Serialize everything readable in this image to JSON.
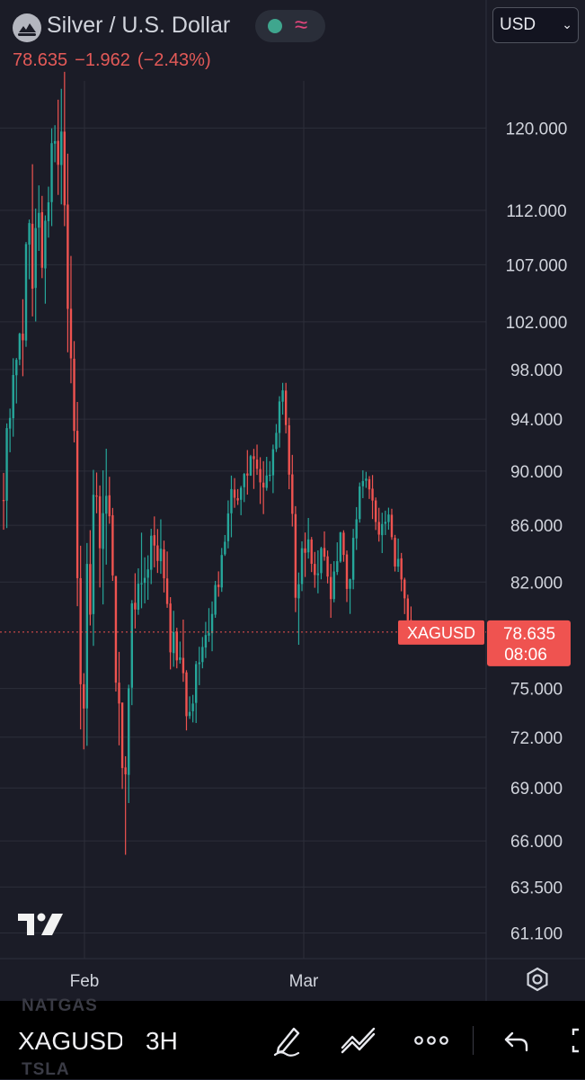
{
  "header": {
    "symbol_title": "Silver / U.S. Dollar",
    "logo_icon": "silver-cloud-logo-icon",
    "status_icons": [
      "market-open-dot-icon",
      "delayed-wave-icon"
    ],
    "last_price": "78.635",
    "change": "−1.962",
    "change_percent": "(−2.43%)",
    "currency": "USD"
  },
  "chart_data": {
    "type": "candlestick",
    "symbol": "XAGUSD",
    "interval": "3H",
    "scale": "log",
    "grid": true,
    "y_ticks": [
      "120.000",
      "112.000",
      "107.000",
      "102.000",
      "98.000",
      "94.000",
      "90.000",
      "86.000",
      "82.000",
      "75.000",
      "72.000",
      "69.000",
      "66.000",
      "63.500",
      "61.100"
    ],
    "x_ticks": [
      "Feb",
      "Mar"
    ],
    "ylim": [
      59.8,
      131
    ],
    "last_price": 78.635,
    "last_price_label": "78.635",
    "countdown": "08:06",
    "symbol_label": "XAGUSD",
    "colors": {
      "up": "#26a69a",
      "down": "#ef5350",
      "background": "#1b1c27",
      "grid": "#2c2e3a"
    },
    "ohlc": [
      [
        87.84,
        89.86,
        85.68,
        87.78
      ],
      [
        87.79,
        93.67,
        85.8,
        93.3
      ],
      [
        93.26,
        94.84,
        91.43,
        94.1
      ],
      [
        94.08,
        98.93,
        92.63,
        97.55
      ],
      [
        97.53,
        98.95,
        95.25,
        98.8
      ],
      [
        98.83,
        101.07,
        98.35,
        100.98
      ],
      [
        100.99,
        103.95,
        97.45,
        100.43
      ],
      [
        100.41,
        109.06,
        99.88,
        108.87
      ],
      [
        108.82,
        111.13,
        105.7,
        110.8
      ],
      [
        110.74,
        116.41,
        102.46,
        104.87
      ],
      [
        104.94,
        112.16,
        102.03,
        110.34
      ],
      [
        110.38,
        114.36,
        108.25,
        111.75
      ],
      [
        111.82,
        113.36,
        105.8,
        106.73
      ],
      [
        106.67,
        111.52,
        103.56,
        111.02
      ],
      [
        110.98,
        114.24,
        109.46,
        112.75
      ],
      [
        112.77,
        119.96,
        110.52,
        118.48
      ],
      [
        118.43,
        120.28,
        116.6,
        118.69
      ],
      [
        118.71,
        122.88,
        113.45,
        116.35
      ],
      [
        116.33,
        124.01,
        112.56,
        119.64
      ],
      [
        119.63,
        125.79,
        110.52,
        112.46
      ],
      [
        112.54,
        117.44,
        99.43,
        103.11
      ],
      [
        103.12,
        107.79,
        96.87,
        98.92
      ],
      [
        98.89,
        100.36,
        92.19,
        93.08
      ],
      [
        93.09,
        95.37,
        80.36,
        82.27
      ],
      [
        82.27,
        84.54,
        72.47,
        75.27
      ],
      [
        75.27,
        75.97,
        71.27,
        73.75
      ],
      [
        73.76,
        84.73,
        71.48,
        83.26
      ],
      [
        83.25,
        85.65,
        79.07,
        79.79
      ],
      [
        79.83,
        90.09,
        77.73,
        88.23
      ],
      [
        88.17,
        89.89,
        86.87,
        88.11
      ],
      [
        88.12,
        88.92,
        81.63,
        84.36
      ],
      [
        84.31,
        90.06,
        80.48,
        86.88
      ],
      [
        86.84,
        91.7,
        83.21,
        88.15
      ],
      [
        88.19,
        89.57,
        86.11,
        86.65
      ],
      [
        86.73,
        87.26,
        82.08,
        82.46
      ],
      [
        82.42,
        82.42,
        74.81,
        75.37
      ],
      [
        75.37,
        77.34,
        71.51,
        74.06
      ],
      [
        74.12,
        74.12,
        68.94,
        70.16
      ],
      [
        70.2,
        70.86,
        65.24,
        69.79
      ],
      [
        69.76,
        75.24,
        68.13,
        75.01
      ],
      [
        75.05,
        80.77,
        73.96,
        80.55
      ],
      [
        80.59,
        82.61,
        78.87,
        80.14
      ],
      [
        80.12,
        82.95,
        79.78,
        81.89
      ],
      [
        81.88,
        85.47,
        80.22,
        81.92
      ],
      [
        81.95,
        83.72,
        80.55,
        82.29
      ],
      [
        82.3,
        83.86,
        80.79,
        82.88
      ],
      [
        82.85,
        85.75,
        81.86,
        85.25
      ],
      [
        85.29,
        86.64,
        83.02,
        84.55
      ],
      [
        84.56,
        85.73,
        82.63,
        83.47
      ],
      [
        83.45,
        86.43,
        82.57,
        84.33
      ],
      [
        84.28,
        84.9,
        81.29,
        82.26
      ],
      [
        82.25,
        84.13,
        80.25,
        80.51
      ],
      [
        80.54,
        80.97,
        76.21,
        77.31
      ],
      [
        77.26,
        80.05,
        76.38,
        78.63
      ],
      [
        78.67,
        78.92,
        76.28,
        76.79
      ],
      [
        76.82,
        78.01,
        76.58,
        76.98
      ],
      [
        76.95,
        79.46,
        75.42,
        75.97
      ],
      [
        76.02,
        76.16,
        72.41,
        73.28
      ],
      [
        73.29,
        74.51,
        73.11,
        73.54
      ],
      [
        73.58,
        74.6,
        72.9,
        74.06
      ],
      [
        74.1,
        76.75,
        72.86,
        76.55
      ],
      [
        76.55,
        77.67,
        75.21,
        76.66
      ],
      [
        76.68,
        78.31,
        76.28,
        77.66
      ],
      [
        77.62,
        79.31,
        76.94,
        78.44
      ],
      [
        78.4,
        80.23,
        77.99,
        78.58
      ],
      [
        78.56,
        80.68,
        77.38,
        79.84
      ],
      [
        79.79,
        82.08,
        79.58,
        81.8
      ],
      [
        81.82,
        82.74,
        81.0,
        81.66
      ],
      [
        81.63,
        84.38,
        81.33,
        83.88
      ],
      [
        83.93,
        85.3,
        83.82,
        84.82
      ],
      [
        84.86,
        87.81,
        84.35,
        86.86
      ],
      [
        86.87,
        89.66,
        85.14,
        88.65
      ],
      [
        88.61,
        89.47,
        87.27,
        88.01
      ],
      [
        87.98,
        88.65,
        87.48,
        87.81
      ],
      [
        87.86,
        88.89,
        86.73,
        88.75
      ],
      [
        88.79,
        89.86,
        87.69,
        89.78
      ],
      [
        89.82,
        91.6,
        88.24,
        89.66
      ],
      [
        89.66,
        91.23,
        89.64,
        91.13
      ],
      [
        91.13,
        91.69,
        88.66,
        90.91
      ],
      [
        90.87,
        92.02,
        89.71,
        90.17
      ],
      [
        90.15,
        91.05,
        87.55,
        89.15
      ],
      [
        89.13,
        90.75,
        86.81,
        88.77
      ],
      [
        88.74,
        91.08,
        88.53,
        89.67
      ],
      [
        89.67,
        90.75,
        89.23,
        89.72
      ],
      [
        89.68,
        92.02,
        88.35,
        91.66
      ],
      [
        91.68,
        93.62,
        91.45,
        92.93
      ],
      [
        92.92,
        95.83,
        91.79,
        95.41
      ],
      [
        95.39,
        96.91,
        94.36,
        96.3
      ],
      [
        96.28,
        96.91,
        92.89,
        93.54
      ],
      [
        93.52,
        94.11,
        88.64,
        89.73
      ],
      [
        89.75,
        91.23,
        85.91,
        86.83
      ],
      [
        86.81,
        87.39,
        79.96,
        80.93
      ],
      [
        80.89,
        82.66,
        77.8,
        81.85
      ],
      [
        81.87,
        84.85,
        81.38,
        84.36
      ],
      [
        84.35,
        85.48,
        82.35,
        84.04
      ],
      [
        84.07,
        86.53,
        83.63,
        84.99
      ],
      [
        84.98,
        85.16,
        82.69,
        83.27
      ],
      [
        83.26,
        84.1,
        81.61,
        82.49
      ],
      [
        82.48,
        84.21,
        81.23,
        82.6
      ],
      [
        82.62,
        84.46,
        82.19,
        84.37
      ],
      [
        84.38,
        85.56,
        83.48,
        83.76
      ],
      [
        83.79,
        84.2,
        81.91,
        82.38
      ],
      [
        82.35,
        83.26,
        79.58,
        80.84
      ],
      [
        80.84,
        83.45,
        80.62,
        82.73
      ],
      [
        82.7,
        84.78,
        82.49,
        83.45
      ],
      [
        83.43,
        85.53,
        83.34,
        85.49
      ],
      [
        85.47,
        85.64,
        83.41,
        83.89
      ],
      [
        83.92,
        84.2,
        80.64,
        81.53
      ],
      [
        81.54,
        82.24,
        79.84,
        82.2
      ],
      [
        82.16,
        85.74,
        81.51,
        85.1
      ],
      [
        85.06,
        87.32,
        84.24,
        86.43
      ],
      [
        86.45,
        89.14,
        86.19,
        88.84
      ],
      [
        88.86,
        90.06,
        87.98,
        89.25
      ],
      [
        89.27,
        89.94,
        88.74,
        89.43
      ],
      [
        89.39,
        89.62,
        87.92,
        88.63
      ],
      [
        88.68,
        89.7,
        86.45,
        87.8
      ],
      [
        87.81,
        88.03,
        85.66,
        86.24
      ],
      [
        86.24,
        87.27,
        84.83,
        85.33
      ],
      [
        85.29,
        86.91,
        84.02,
        86.09
      ],
      [
        86.11,
        87.06,
        85.3,
        86.25
      ],
      [
        86.23,
        87.28,
        85.68,
        86.78
      ],
      [
        86.76,
        87.2,
        84.96,
        85.15
      ],
      [
        85.1,
        85.31,
        82.73,
        83.08
      ],
      [
        83.07,
        85.05,
        82.7,
        83.61
      ],
      [
        83.65,
        84.03,
        81.37,
        82.18
      ],
      [
        82.17,
        82.3,
        79.83,
        80.89
      ],
      [
        80.88,
        81.14,
        79.12,
        79.41
      ],
      [
        79.43,
        80.34,
        78.53,
        78.65
      ]
    ]
  },
  "chart_widgets": {
    "tv_logo_icon": "tradingview-logo-icon",
    "settings_icon": "settings-gear-icon"
  },
  "bottom_bar": {
    "symbol": "XAGUSD",
    "interval": "3H",
    "ticker_above": "NATGAS",
    "ticker_below": "TSLA",
    "icons": [
      "drawing-pen-icon",
      "indicators-icon",
      "more-icon",
      "undo-icon",
      "fullscreen-icon"
    ]
  }
}
